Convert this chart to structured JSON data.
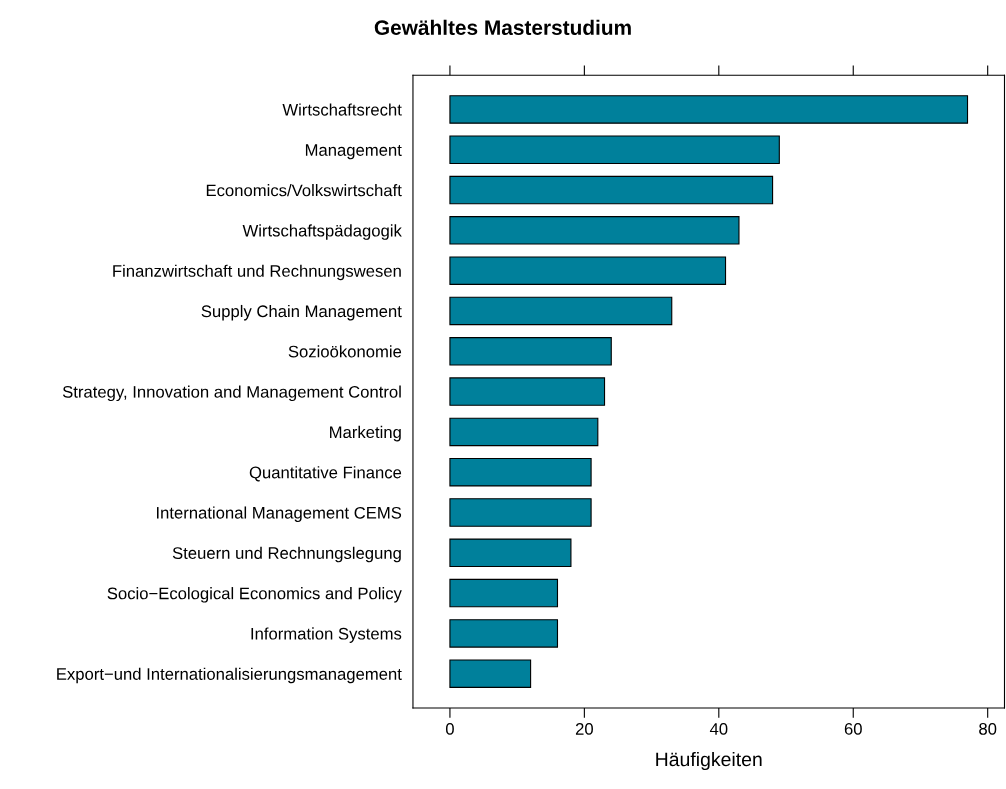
{
  "chart_data": {
    "type": "bar",
    "orientation": "horizontal",
    "title": "Gewähltes Masterstudium",
    "xlabel": "Häufigkeiten",
    "categories": [
      "Wirtschaftsrecht",
      "Management",
      "Economics/Volkswirtschaft",
      "Wirtschaftspädagogik",
      "Finanzwirtschaft und Rechnungswesen",
      "Supply Chain Management",
      "Sozioökonomie",
      "Strategy, Innovation and Management Control",
      "Marketing",
      "Quantitative Finance",
      "International Management CEMS",
      "Steuern und Rechnungslegung",
      "Socio−Ecological Economics and Policy",
      "Information Systems",
      "Export−und Internationalisierungsmanagement"
    ],
    "values": [
      77,
      49,
      48,
      43,
      41,
      33,
      24,
      23,
      22,
      21,
      21,
      18,
      16,
      16,
      12
    ],
    "color": "#00809b",
    "xlim": [
      -5.5,
      82.5
    ],
    "xticks": [
      0,
      20,
      40,
      60,
      80
    ],
    "grid": false,
    "legend": false
  }
}
